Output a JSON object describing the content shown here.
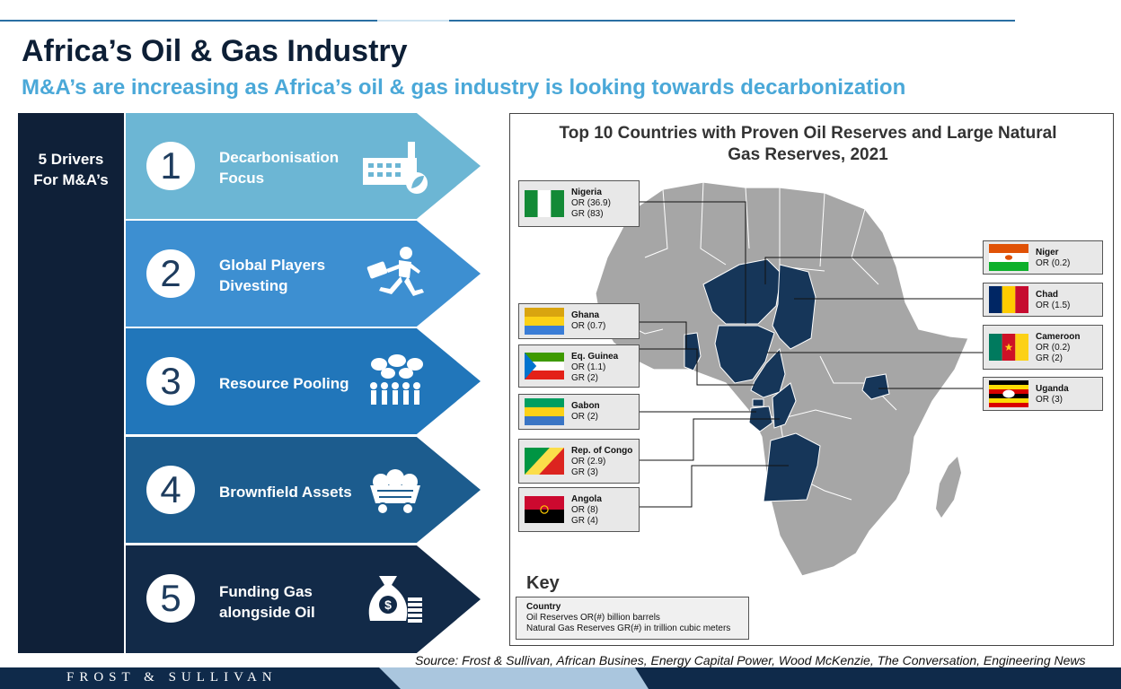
{
  "title": "Africa’s Oil & Gas Industry",
  "subtitle": "M&A’s are increasing as Africa’s oil & gas industry is looking towards decarbonization",
  "drivers_label": [
    "5 Drivers",
    "For M&A’s"
  ],
  "drivers": [
    {
      "number": "1",
      "lines": [
        "Decarbonisation",
        "Focus"
      ],
      "icon": "factory-leaf-icon",
      "color": "#6cb6d4"
    },
    {
      "number": "2",
      "lines": [
        "Global Players",
        "Divesting"
      ],
      "icon": "running-businessman-icon",
      "color": "#3d8fd1"
    },
    {
      "number": "3",
      "lines": [
        "Resource Pooling"
      ],
      "icon": "people-collaboration-icon",
      "color": "#2176ba"
    },
    {
      "number": "4",
      "lines": [
        "Brownfield Assets"
      ],
      "icon": "mining-cart-icon",
      "color": "#1c5c8e"
    },
    {
      "number": "5",
      "lines": [
        "Funding Gas",
        "alongside Oil"
      ],
      "icon": "money-bag-icon",
      "color": "#122a48"
    }
  ],
  "map": {
    "title_lines": [
      "Top 10 Countries  with Proven Oil Reserves and Large Natural",
      "Gas Reserves, 2021"
    ],
    "highlight_color": "#163659",
    "land_color": "#a6a6a6",
    "countries": [
      {
        "name": "Nigeria",
        "lines": [
          "OR (36.9)",
          "GR (83)"
        ]
      },
      {
        "name": "Ghana",
        "lines": [
          "OR (0.7)"
        ]
      },
      {
        "name": "Eq. Guinea",
        "lines": [
          "OR (1.1)",
          "GR (2)"
        ]
      },
      {
        "name": "Gabon",
        "lines": [
          "OR (2)"
        ]
      },
      {
        "name": "Rep. of Congo",
        "lines": [
          "OR (2.9)",
          "GR (3)"
        ]
      },
      {
        "name": "Angola",
        "lines": [
          "OR (8)",
          "GR (4)"
        ]
      },
      {
        "name": "Niger",
        "lines": [
          "OR (0.2)"
        ]
      },
      {
        "name": "Chad",
        "lines": [
          "OR (1.5)"
        ]
      },
      {
        "name": "Cameroon",
        "lines": [
          "OR (0.2)",
          "GR (2)"
        ]
      },
      {
        "name": "Uganda",
        "lines": [
          "OR (3)"
        ]
      }
    ],
    "key": {
      "heading": "Key",
      "lines": [
        "Country",
        "Oil Reserves OR(#) billion  barrels",
        "Natural Gas Reserves GR(#) in trillion  cubic meters"
      ]
    }
  },
  "source": "Source: Frost & Sullivan, African Busines, Energy Capital Power, Wood McKenzie, The Conversation, Engineering News",
  "footer_brand": "FROST & SULLIVAN"
}
